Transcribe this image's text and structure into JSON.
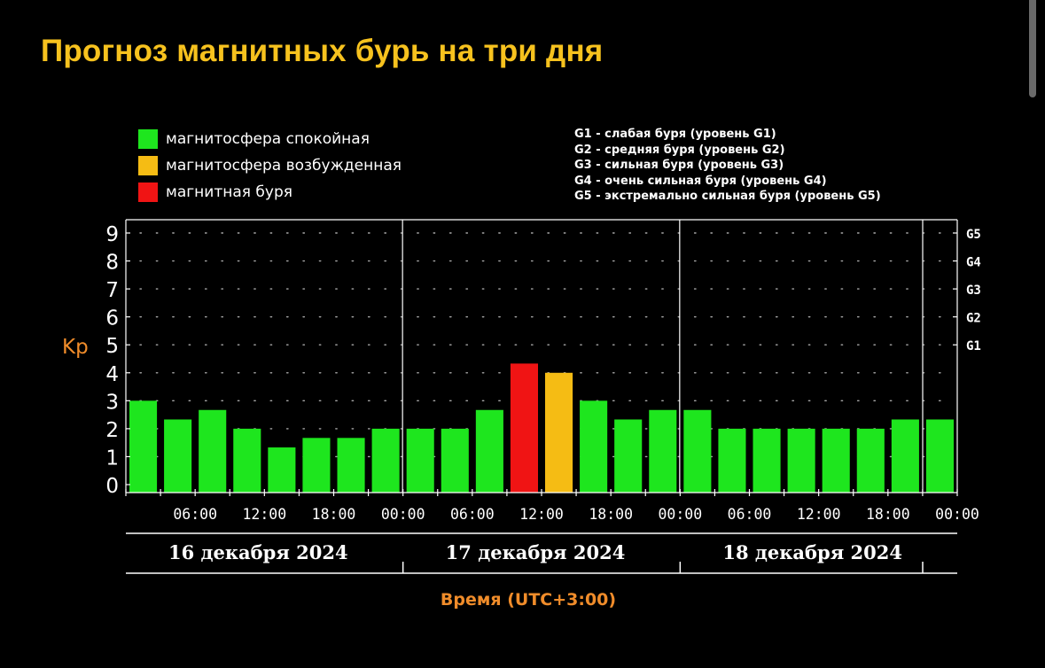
{
  "title": "Прогноз магнитных бурь на три дня",
  "legend": {
    "items": [
      {
        "label": "магнитосфера спокойная",
        "color": "#1ee61e"
      },
      {
        "label": "магнитосфера возбужденная",
        "color": "#f5bc14"
      },
      {
        "label": "магнитная буря",
        "color": "#f01414"
      }
    ],
    "storm_levels": [
      "G1 - слабая буря (уровень G1)",
      "G2 - средняя буря (уровень G2)",
      "G3 - сильная буря (уровень G3)",
      "G4 - очень сильная буря (уровень G4)",
      "G5 - экстремально сильная буря (уровень G5)"
    ]
  },
  "chart_data": {
    "type": "bar",
    "ylabel": "Kp",
    "xlabel": "Время (UTC+3:00)",
    "ylim": [
      0,
      9
    ],
    "y_ticks": [
      "0",
      "1",
      "2",
      "3",
      "4",
      "5",
      "6",
      "7",
      "8",
      "9"
    ],
    "right_axis": [
      {
        "label": "G1",
        "value": 5
      },
      {
        "label": "G2",
        "value": 6
      },
      {
        "label": "G3",
        "value": 7
      },
      {
        "label": "G4",
        "value": 8
      },
      {
        "label": "G5",
        "value": 9
      }
    ],
    "x_tick_labels": [
      "06:00",
      "12:00",
      "18:00",
      "00:00",
      "06:00",
      "12:00",
      "18:00",
      "00:00",
      "06:00",
      "12:00",
      "18:00",
      "00:00"
    ],
    "days": [
      "16 декабря 2024",
      "17 декабря 2024",
      "18 декабря 2024"
    ],
    "grid": true,
    "values": [
      3.0,
      2.33,
      2.67,
      2.0,
      1.33,
      1.67,
      1.67,
      2.0,
      2.0,
      2.0,
      2.67,
      4.33,
      4.0,
      3.0,
      2.33,
      2.67,
      2.67,
      2.0,
      2.0,
      2.0,
      2.0,
      2.0,
      2.33,
      2.33
    ],
    "bar_status": [
      "calm",
      "calm",
      "calm",
      "calm",
      "calm",
      "calm",
      "calm",
      "calm",
      "calm",
      "calm",
      "calm",
      "storm",
      "excited",
      "calm",
      "calm",
      "calm",
      "calm",
      "calm",
      "calm",
      "calm",
      "calm",
      "calm",
      "calm",
      "calm"
    ],
    "status_colors": {
      "calm": "#1ee61e",
      "excited": "#f5bc14",
      "storm": "#f01414"
    }
  }
}
